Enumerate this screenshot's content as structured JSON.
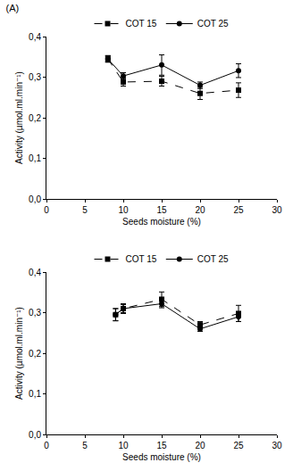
{
  "chart_data": [
    {
      "type": "line",
      "title": "(A)",
      "x_label": "Seeds moisture (%)",
      "y_label": "Activity (µmol.ml.min⁻¹)",
      "xlim": [
        0,
        30
      ],
      "xticks": [
        0,
        5,
        10,
        15,
        20,
        25,
        30
      ],
      "ylim": [
        0,
        0.4
      ],
      "yticks": [
        {
          "value": 0,
          "label": "0,0"
        },
        {
          "value": 0.1,
          "label": "0,1"
        },
        {
          "value": 0.2,
          "label": "0,2"
        },
        {
          "value": 0.3,
          "label": "0,3"
        },
        {
          "value": 0.4,
          "label": "0,4"
        }
      ],
      "grid": false,
      "legend": "top",
      "series": [
        {
          "name": "COT 15",
          "color": "#000000",
          "marker": "square",
          "line_style": "dash",
          "x": [
            8,
            10,
            15,
            20,
            25
          ],
          "values": [
            0.345,
            0.288,
            0.29,
            0.26,
            0.268
          ],
          "error": [
            0.008,
            0.01,
            0.012,
            0.015,
            0.018
          ]
        },
        {
          "name": "COT 25",
          "color": "#000000",
          "marker": "circle",
          "line_style": "solid",
          "x": [
            8,
            10,
            15,
            20,
            25
          ],
          "values": [
            0.345,
            0.303,
            0.33,
            0.28,
            0.316
          ],
          "error": [
            0.008,
            0.008,
            0.025,
            0.008,
            0.017
          ]
        }
      ]
    },
    {
      "type": "line",
      "x_label": "Seeds moisture (%)",
      "y_label": "Activity (µmol.ml.min⁻¹)",
      "xlim": [
        0,
        30
      ],
      "xticks": [
        0,
        5,
        10,
        15,
        20,
        25,
        30
      ],
      "ylim": [
        0,
        0.4
      ],
      "yticks": [
        {
          "value": 0,
          "label": "0,0"
        },
        {
          "value": 0.1,
          "label": "0,1"
        },
        {
          "value": 0.2,
          "label": "0,2"
        },
        {
          "value": 0.3,
          "label": "0,3"
        },
        {
          "value": 0.4,
          "label": "0,4"
        }
      ],
      "grid": false,
      "legend": "top",
      "series": [
        {
          "name": "COT 15",
          "color": "#000000",
          "marker": "square",
          "line_style": "dash",
          "x": [
            9,
            10,
            15,
            20,
            25
          ],
          "values": [
            0.295,
            0.31,
            0.333,
            0.27,
            0.298
          ],
          "error": [
            0.015,
            0.012,
            0.018,
            0.008,
            0.02
          ]
        },
        {
          "name": "COT 25",
          "color": "#000000",
          "marker": "circle",
          "line_style": "solid",
          "x": [
            9,
            10,
            15,
            20,
            25
          ],
          "values": [
            0.295,
            0.31,
            0.322,
            0.26,
            0.29
          ],
          "error": [
            0.015,
            0.01,
            0.01,
            0.006,
            0.012
          ]
        }
      ]
    }
  ]
}
